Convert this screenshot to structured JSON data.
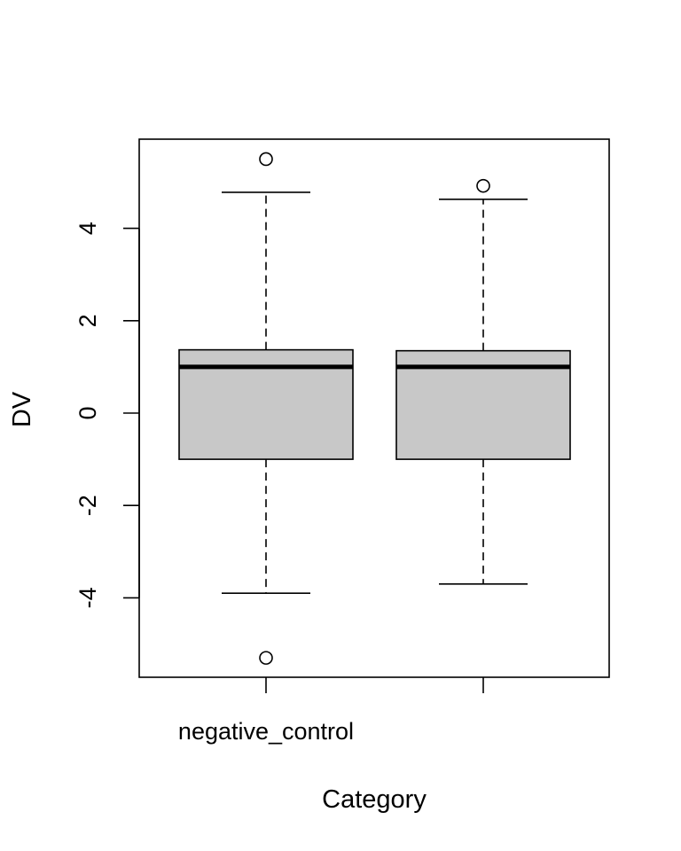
{
  "chart_data": {
    "type": "box",
    "title": "",
    "xlabel": "Category",
    "ylabel": "DV",
    "categories": [
      "negative_control",
      ""
    ],
    "yticks": [
      -4,
      -2,
      0,
      2,
      4
    ],
    "ylim": [
      -5.8,
      5.8
    ],
    "grid": false,
    "box_fill": "#c8c8c8",
    "boxes": [
      {
        "category": "negative_control",
        "whisker_low": -3.9,
        "q1": -1.0,
        "median": 1.0,
        "q3": 1.37,
        "whisker_high": 4.78,
        "outliers": [
          5.5,
          -5.3
        ]
      },
      {
        "category": "",
        "whisker_low": -3.7,
        "q1": -1.0,
        "median": 1.0,
        "q3": 1.35,
        "whisker_high": 4.63,
        "outliers": [
          4.92
        ]
      }
    ]
  }
}
